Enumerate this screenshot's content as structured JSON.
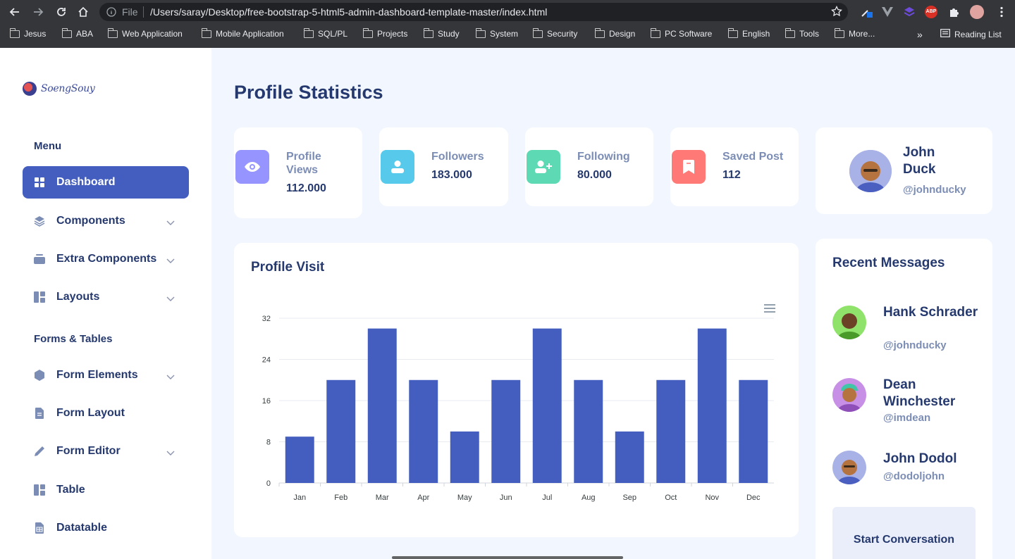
{
  "browser": {
    "file_label": "File",
    "url": "/Users/saray/Desktop/free-bootstrap-5-html5-admin-dashboard-template-master/index.html",
    "bookmarks": [
      "Jesus",
      "ABA",
      "Web Application",
      "Mobile Application",
      "SQL/PL",
      "Projects",
      "Study",
      "System",
      "Security",
      "Design",
      "PC Software",
      "English",
      "Tools",
      "More..."
    ],
    "overflow_label": "»",
    "reading_list": "Reading List",
    "ext_abp": "ABP"
  },
  "sidebar": {
    "logo_text": "SoengSouy",
    "sections": [
      "Menu",
      "Forms & Tables"
    ],
    "items": [
      {
        "label": "Dashboard",
        "icon": "grid-icon",
        "active": true
      },
      {
        "label": "Components",
        "icon": "stack-icon",
        "submenu": true
      },
      {
        "label": "Extra Components",
        "icon": "collection-icon",
        "submenu": true
      },
      {
        "label": "Layouts",
        "icon": "grid-1x2-icon",
        "submenu": true
      },
      {
        "label": "Form Elements",
        "icon": "hexagon-icon",
        "submenu": true
      },
      {
        "label": "Form Layout",
        "icon": "file-text-icon"
      },
      {
        "label": "Form Editor",
        "icon": "pen-icon",
        "submenu": true
      },
      {
        "label": "Table",
        "icon": "grid-1x2-icon"
      },
      {
        "label": "Datatable",
        "icon": "file-spreadsheet-icon"
      }
    ]
  },
  "main": {
    "title": "Profile Statistics",
    "stats": [
      {
        "label": "Profile Views",
        "value": "112.000",
        "color": "#9694ff",
        "icon": "eye-icon"
      },
      {
        "label": "Followers",
        "value": "183.000",
        "color": "#57caeb",
        "icon": "person-icon"
      },
      {
        "label": "Following",
        "value": "80.000",
        "color": "#5ddab4",
        "icon": "person-add-icon"
      },
      {
        "label": "Saved Post",
        "value": "112",
        "color": "#ff7976",
        "icon": "bookmark-icon"
      }
    ],
    "profile": {
      "name": "John Duck",
      "handle": "@johnducky"
    },
    "chart_title": "Profile Visit"
  },
  "chart_data": {
    "type": "bar",
    "title": "Profile Visit",
    "categories": [
      "Jan",
      "Feb",
      "Mar",
      "Apr",
      "May",
      "Jun",
      "Jul",
      "Aug",
      "Sep",
      "Oct",
      "Nov",
      "Dec"
    ],
    "values": [
      9,
      20,
      30,
      20,
      10,
      20,
      30,
      20,
      10,
      20,
      30,
      20
    ],
    "yticks": [
      0,
      8,
      16,
      24,
      32
    ],
    "ylim": [
      0,
      32
    ],
    "color": "#435ebe",
    "grid": true,
    "legend": "none"
  },
  "messages": {
    "title": "Recent Messages",
    "items": [
      {
        "name": "Hank Schrader",
        "handle": "@johnducky",
        "color": "#8fe36b"
      },
      {
        "name": "Dean Winchester",
        "handle": "@imdean",
        "color": "#c88fe6"
      },
      {
        "name": "John Dodol",
        "handle": "@dodoljohn",
        "color": "#a8b2e6"
      }
    ],
    "button": "Start Conversation"
  }
}
